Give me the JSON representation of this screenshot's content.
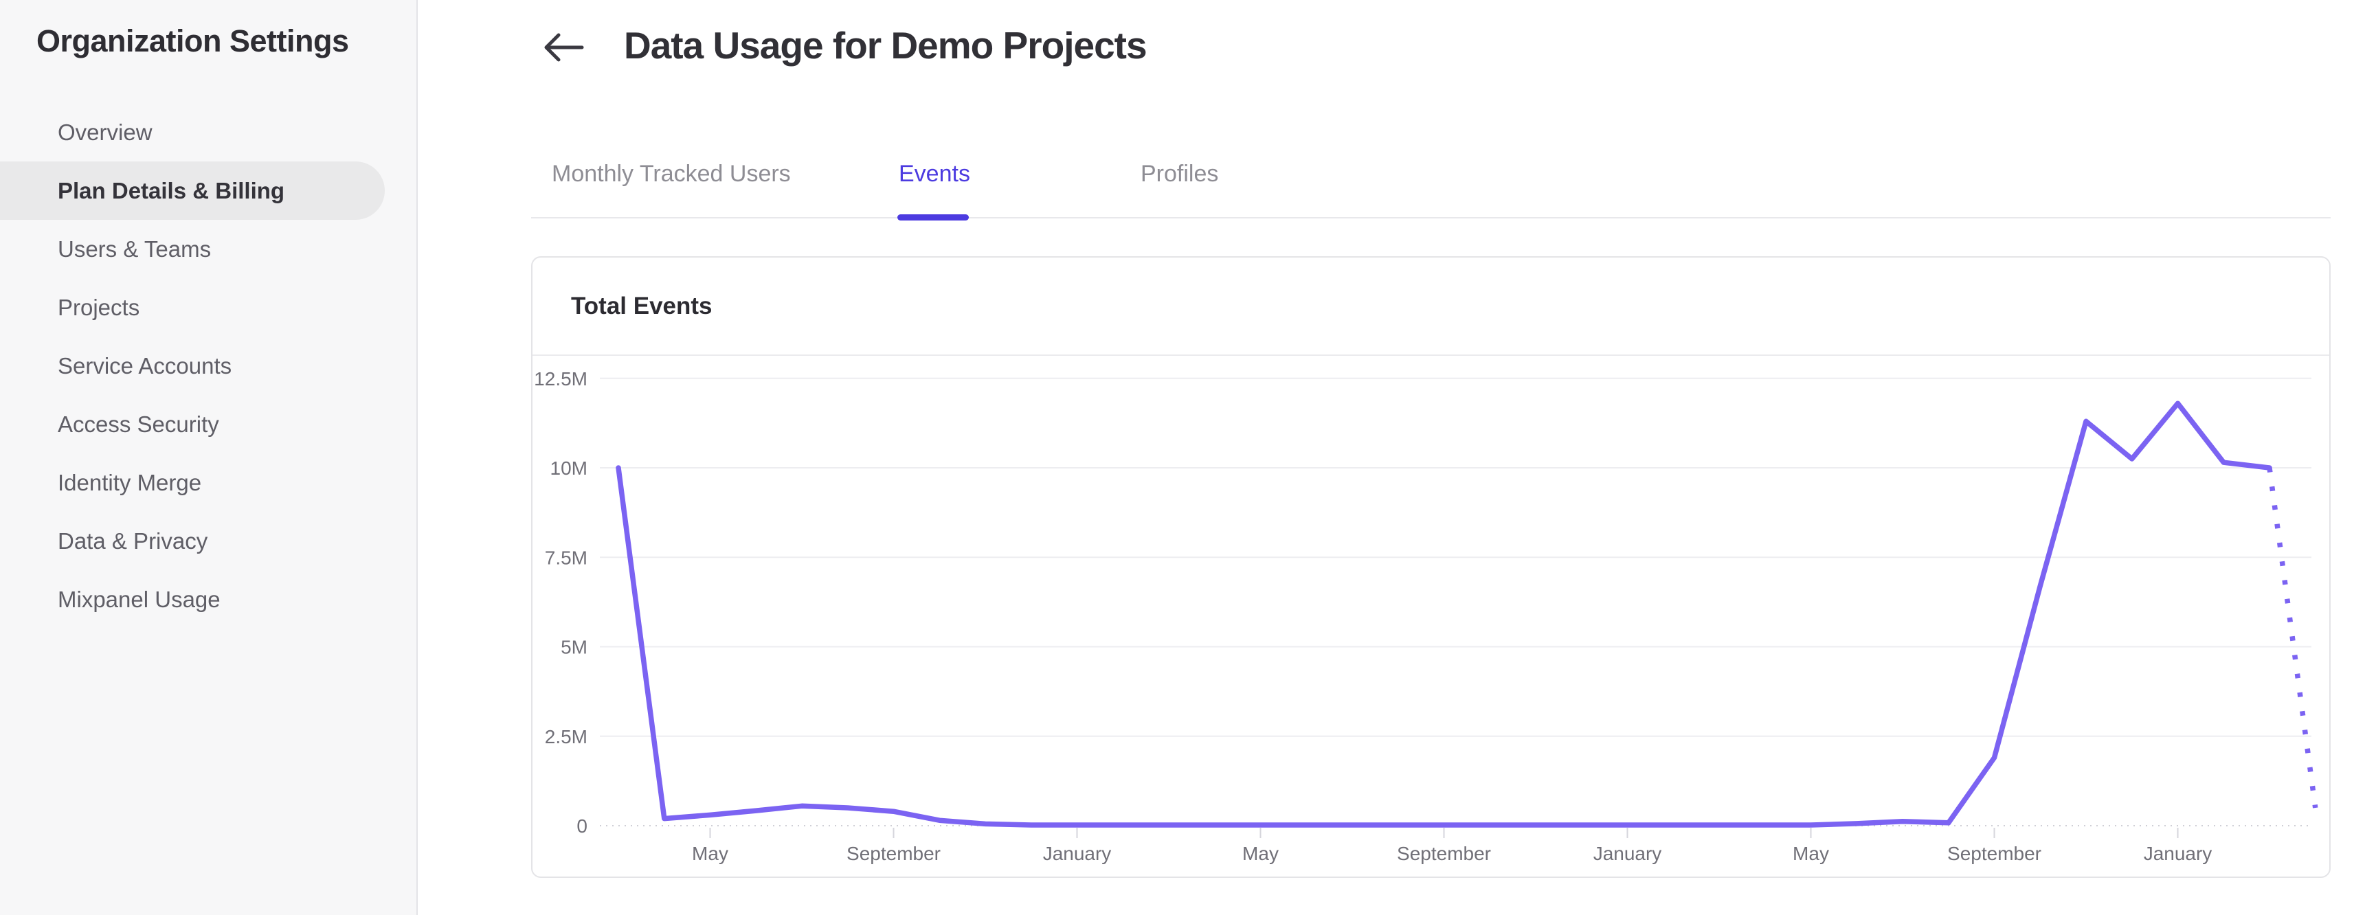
{
  "sidebar": {
    "title": "Organization Settings",
    "items": [
      {
        "label": "Overview",
        "selected": false
      },
      {
        "label": "Plan Details & Billing",
        "selected": true
      },
      {
        "label": "Users & Teams",
        "selected": false
      },
      {
        "label": "Projects",
        "selected": false
      },
      {
        "label": "Service Accounts",
        "selected": false
      },
      {
        "label": "Access Security",
        "selected": false
      },
      {
        "label": "Identity Merge",
        "selected": false
      },
      {
        "label": "Data & Privacy",
        "selected": false
      },
      {
        "label": "Mixpanel Usage",
        "selected": false
      }
    ]
  },
  "header": {
    "title": "Data Usage for Demo Projects",
    "back_icon": "arrow-left-icon"
  },
  "tabs": [
    {
      "label": "Monthly Tracked Users",
      "active": false
    },
    {
      "label": "Events",
      "active": true
    },
    {
      "label": "Profiles",
      "active": false
    }
  ],
  "card": {
    "title": "Total Events"
  },
  "colors": {
    "accent": "#4c3be0",
    "chart_line": "#7b63f2",
    "grid": "#ededf0",
    "axis_text": "#706f77",
    "sidebar_bg": "#f7f7f8",
    "selected_item_bg": "#e9e9ea",
    "text_dark": "#2e2d33",
    "text_gray": "#5f5e66",
    "tab_inactive": "#8e8d94",
    "border": "#e4e4e7"
  },
  "chart_data": {
    "type": "line",
    "title": "Total Events",
    "points_are": "monthly values, read off gridlines",
    "series": [
      {
        "name": "Total Events",
        "unit": "events, millions",
        "values_millions": [
          10,
          0.2,
          0.3,
          0.42,
          0.55,
          0.5,
          0.4,
          0.15,
          0.05,
          0.02,
          0.02,
          0.02,
          0.02,
          0.02,
          0.02,
          0.02,
          0.02,
          0.02,
          0.02,
          0.02,
          0.02,
          0.02,
          0.02,
          0.02,
          0.02,
          0.02,
          0.02,
          0.06,
          0.12,
          0.08,
          1.9,
          6.7,
          11.3,
          10.25,
          11.8,
          10.15,
          10.0,
          0.5
        ]
      }
    ],
    "projection_dotted_from_index": 36,
    "xtick_labels": [
      "May",
      "September",
      "January",
      "May",
      "September",
      "January",
      "May",
      "September",
      "January"
    ],
    "xtick_point_indices": [
      2,
      6,
      10,
      14,
      18,
      22,
      26,
      30,
      34
    ],
    "ytick_labels": [
      "12.5M",
      "10M",
      "7.5M",
      "5M",
      "2.5M",
      "0"
    ],
    "ytick_values_millions": [
      12.5,
      10,
      7.5,
      5,
      2.5,
      0
    ],
    "ylim_millions": [
      0,
      13.1
    ],
    "grid": "horizontal gridlines on, zero baseline dotted",
    "legend": "none"
  }
}
